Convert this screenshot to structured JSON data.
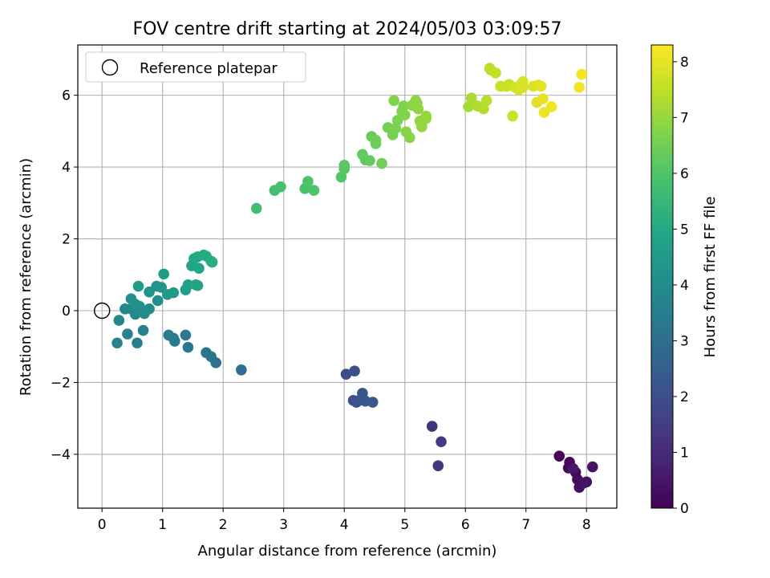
{
  "chart_data": {
    "type": "scatter",
    "title": "FOV centre drift starting at 2024/05/03 03:09:57",
    "xlabel": "Angular distance from reference (arcmin)",
    "ylabel": "Rotation from reference (arcmin)",
    "xlim": [
      -0.4,
      8.5
    ],
    "ylim": [
      -5.5,
      7.4
    ],
    "xticks": [
      0,
      1,
      2,
      3,
      4,
      5,
      6,
      7,
      8
    ],
    "yticks": [
      -4,
      -2,
      0,
      2,
      4,
      6
    ],
    "grid": true,
    "legend": {
      "position": "top-left",
      "entries": [
        {
          "label": "Reference platepar",
          "marker": "open-circle"
        }
      ]
    },
    "reference_point": {
      "x": 0,
      "y": 0
    },
    "colorbar": {
      "label": "Hours from first FF file",
      "colormap": "viridis",
      "range": [
        0,
        8.3
      ],
      "ticks": [
        0,
        1,
        2,
        3,
        4,
        5,
        6,
        7,
        8
      ]
    },
    "series": [
      {
        "points": [
          [
            7.55,
            -4.05,
            0.05
          ],
          [
            7.72,
            -4.22,
            0.1
          ],
          [
            7.7,
            -4.38,
            0.15
          ],
          [
            7.82,
            -4.5,
            0.2
          ],
          [
            7.85,
            -4.7,
            0.25
          ],
          [
            7.88,
            -4.92,
            0.3
          ],
          [
            8.0,
            -4.77,
            0.35
          ],
          [
            8.1,
            -4.35,
            0.4
          ],
          [
            7.95,
            -4.8,
            0.45
          ],
          [
            7.78,
            -4.4,
            0.5
          ],
          [
            5.45,
            -3.22,
            1.2
          ],
          [
            5.55,
            -4.32,
            1.3
          ],
          [
            5.6,
            -3.65,
            1.4
          ],
          [
            4.03,
            -1.77,
            1.9
          ],
          [
            4.17,
            -1.68,
            2.0
          ],
          [
            4.15,
            -2.5,
            2.05
          ],
          [
            4.2,
            -2.55,
            2.1
          ],
          [
            4.25,
            -2.5,
            2.15
          ],
          [
            4.3,
            -2.3,
            2.2
          ],
          [
            4.35,
            -2.52,
            2.25
          ],
          [
            4.47,
            -2.55,
            2.3
          ],
          [
            2.3,
            -1.65,
            3.0
          ],
          [
            1.88,
            -1.45,
            3.1
          ],
          [
            1.8,
            -1.28,
            3.15
          ],
          [
            1.72,
            -1.17,
            3.2
          ],
          [
            1.42,
            -1.02,
            3.3
          ],
          [
            1.38,
            -0.68,
            3.35
          ],
          [
            1.2,
            -0.85,
            3.4
          ],
          [
            1.1,
            -0.68,
            3.45
          ],
          [
            1.18,
            -0.77,
            3.5
          ],
          [
            0.68,
            -0.55,
            3.55
          ],
          [
            0.58,
            -0.9,
            3.6
          ],
          [
            0.25,
            -0.9,
            3.65
          ],
          [
            0.42,
            -0.65,
            3.7
          ],
          [
            0.28,
            -0.27,
            3.75
          ],
          [
            0.38,
            0.05,
            3.8
          ],
          [
            0.48,
            0.05,
            3.85
          ],
          [
            0.55,
            -0.1,
            3.9
          ],
          [
            0.62,
            0.12,
            3.95
          ],
          [
            0.7,
            -0.08,
            4.0
          ],
          [
            0.78,
            0.05,
            4.05
          ],
          [
            0.92,
            0.28,
            4.1
          ],
          [
            0.48,
            0.33,
            4.15
          ],
          [
            0.55,
            0.18,
            4.2
          ],
          [
            0.78,
            0.52,
            4.25
          ],
          [
            0.9,
            0.68,
            4.3
          ],
          [
            0.98,
            0.65,
            4.35
          ],
          [
            1.08,
            0.45,
            4.4
          ],
          [
            1.18,
            0.5,
            4.45
          ],
          [
            0.6,
            0.68,
            4.5
          ],
          [
            1.02,
            1.02,
            4.55
          ],
          [
            1.38,
            0.58,
            4.6
          ],
          [
            1.42,
            0.72,
            4.7
          ],
          [
            1.55,
            0.72,
            4.75
          ],
          [
            1.58,
            0.7,
            4.8
          ],
          [
            1.48,
            1.25,
            4.85
          ],
          [
            1.6,
            1.18,
            4.9
          ],
          [
            1.52,
            1.45,
            4.95
          ],
          [
            1.58,
            1.5,
            5.0
          ],
          [
            1.72,
            1.52,
            5.05
          ],
          [
            1.68,
            1.55,
            5.1
          ],
          [
            1.82,
            1.35,
            5.15
          ],
          [
            1.8,
            1.38,
            5.2
          ],
          [
            2.55,
            2.85,
            5.75
          ],
          [
            2.85,
            3.35,
            5.8
          ],
          [
            2.95,
            3.45,
            5.85
          ],
          [
            3.35,
            3.4,
            5.9
          ],
          [
            3.4,
            3.6,
            5.95
          ],
          [
            3.5,
            3.35,
            6.0
          ],
          [
            3.95,
            3.72,
            6.05
          ],
          [
            4.0,
            3.95,
            6.1
          ],
          [
            4.0,
            4.05,
            6.15
          ],
          [
            4.35,
            4.2,
            6.2
          ],
          [
            4.3,
            4.35,
            6.25
          ],
          [
            4.42,
            4.18,
            6.3
          ],
          [
            4.45,
            4.85,
            6.35
          ],
          [
            4.52,
            4.65,
            6.4
          ],
          [
            4.52,
            4.75,
            6.45
          ],
          [
            4.62,
            4.1,
            6.5
          ],
          [
            4.72,
            5.1,
            6.55
          ],
          [
            4.8,
            4.9,
            6.6
          ],
          [
            4.85,
            5.08,
            6.62
          ],
          [
            4.88,
            5.3,
            6.65
          ],
          [
            4.95,
            5.55,
            6.68
          ],
          [
            4.82,
            5.85,
            6.7
          ],
          [
            4.98,
            5.7,
            6.72
          ],
          [
            5.0,
            5.45,
            6.75
          ],
          [
            5.02,
            4.98,
            6.78
          ],
          [
            5.08,
            4.82,
            6.8
          ],
          [
            5.12,
            5.72,
            6.82
          ],
          [
            5.18,
            5.85,
            6.85
          ],
          [
            5.2,
            5.78,
            6.88
          ],
          [
            5.22,
            5.62,
            6.9
          ],
          [
            5.25,
            5.28,
            6.92
          ],
          [
            5.28,
            5.12,
            6.95
          ],
          [
            5.35,
            5.35,
            6.98
          ],
          [
            5.35,
            5.42,
            7.0
          ],
          [
            6.05,
            5.68,
            7.2
          ],
          [
            6.1,
            5.92,
            7.25
          ],
          [
            6.2,
            5.7,
            7.3
          ],
          [
            6.3,
            5.62,
            7.35
          ],
          [
            6.35,
            5.85,
            7.4
          ],
          [
            6.4,
            6.75,
            7.45
          ],
          [
            6.42,
            6.7,
            7.5
          ],
          [
            6.5,
            6.62,
            7.55
          ],
          [
            6.58,
            6.25,
            7.6
          ],
          [
            6.68,
            6.25,
            7.62
          ],
          [
            6.72,
            6.3,
            7.65
          ],
          [
            6.78,
            5.42,
            7.7
          ],
          [
            6.82,
            6.22,
            7.72
          ],
          [
            6.88,
            6.15,
            7.75
          ],
          [
            6.92,
            6.3,
            7.78
          ],
          [
            6.95,
            6.38,
            7.8
          ],
          [
            6.95,
            6.22,
            7.82
          ],
          [
            7.12,
            6.25,
            7.85
          ],
          [
            7.18,
            5.8,
            7.88
          ],
          [
            7.2,
            6.28,
            7.9
          ],
          [
            7.25,
            6.25,
            7.95
          ],
          [
            7.28,
            5.9,
            8.0
          ],
          [
            7.3,
            5.52,
            8.05
          ],
          [
            7.42,
            5.68,
            8.1
          ],
          [
            7.88,
            6.22,
            8.15
          ],
          [
            7.92,
            6.58,
            8.2
          ]
        ]
      }
    ]
  }
}
